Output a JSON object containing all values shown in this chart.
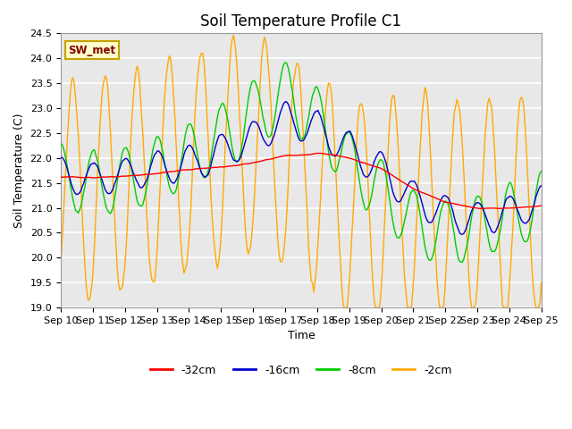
{
  "title": "Soil Temperature Profile C1",
  "xlabel": "Time",
  "ylabel": "Soil Temperature (C)",
  "ylim": [
    19.0,
    24.5
  ],
  "yticks": [
    19.0,
    19.5,
    20.0,
    20.5,
    21.0,
    21.5,
    22.0,
    22.5,
    23.0,
    23.5,
    24.0,
    24.5
  ],
  "xtick_labels": [
    "Sep 10",
    "Sep 11",
    "Sep 12",
    "Sep 13",
    "Sep 14",
    "Sep 15",
    "Sep 16",
    "Sep 17",
    "Sep 18",
    "Sep 19",
    "Sep 20",
    "Sep 21",
    "Sep 22",
    "Sep 23",
    "Sep 24",
    "Sep 25"
  ],
  "legend_label": "SW_met",
  "legend_box_facecolor": "#ffffcc",
  "legend_box_edge": "#c8a000",
  "legend_text_color": "#800000",
  "line_colors": {
    "-32cm": "#ff0000",
    "-16cm": "#0000cc",
    "-8cm": "#00cc00",
    "-2cm": "#ffaa00"
  },
  "plot_bg_color": "#e8e8e8",
  "fig_bg_color": "#ffffff",
  "grid_color": "#ffffff",
  "title_fontsize": 12,
  "axis_fontsize": 9,
  "tick_fontsize": 8
}
